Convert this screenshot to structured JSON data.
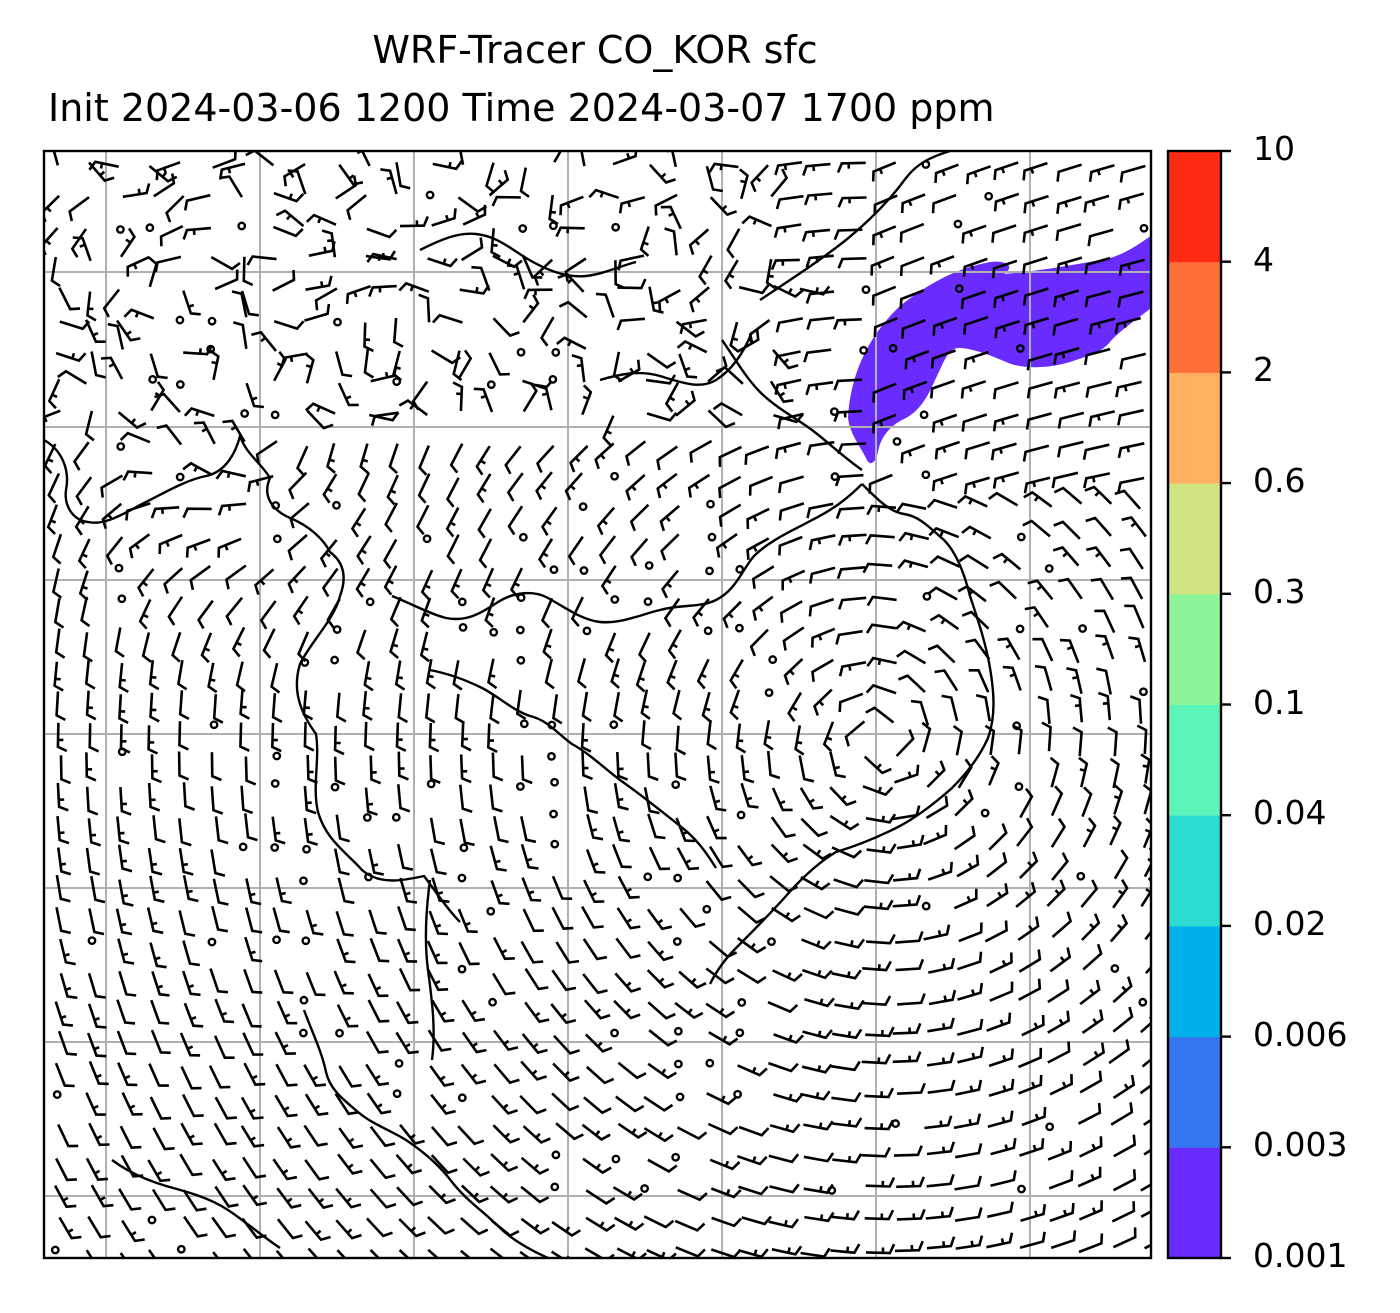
{
  "title": {
    "line1": "WRF-Tracer CO_KOR sfc",
    "line2": "Init 2024-03-06 1200 Time 2024-03-07 1700 ppm"
  },
  "colorbar": {
    "levels": [
      "0.001",
      "0.003",
      "0.006",
      "0.02",
      "0.04",
      "0.1",
      "0.3",
      "0.6",
      "2",
      "4",
      "10"
    ],
    "colors": [
      "#6a2bff",
      "#3477f0",
      "#00b0ea",
      "#2cdbd2",
      "#5cf5b9",
      "#8ef49a",
      "#cfe382",
      "#ffb060",
      "#ff7038",
      "#ff2a12"
    ]
  },
  "plume": {
    "color": "#6a2bff",
    "value_range": [
      "0.001",
      "0.003"
    ]
  },
  "map": {
    "gridline_color": "#b0b0b0",
    "wind_barbs": "black",
    "coastline_color": "#000000"
  }
}
